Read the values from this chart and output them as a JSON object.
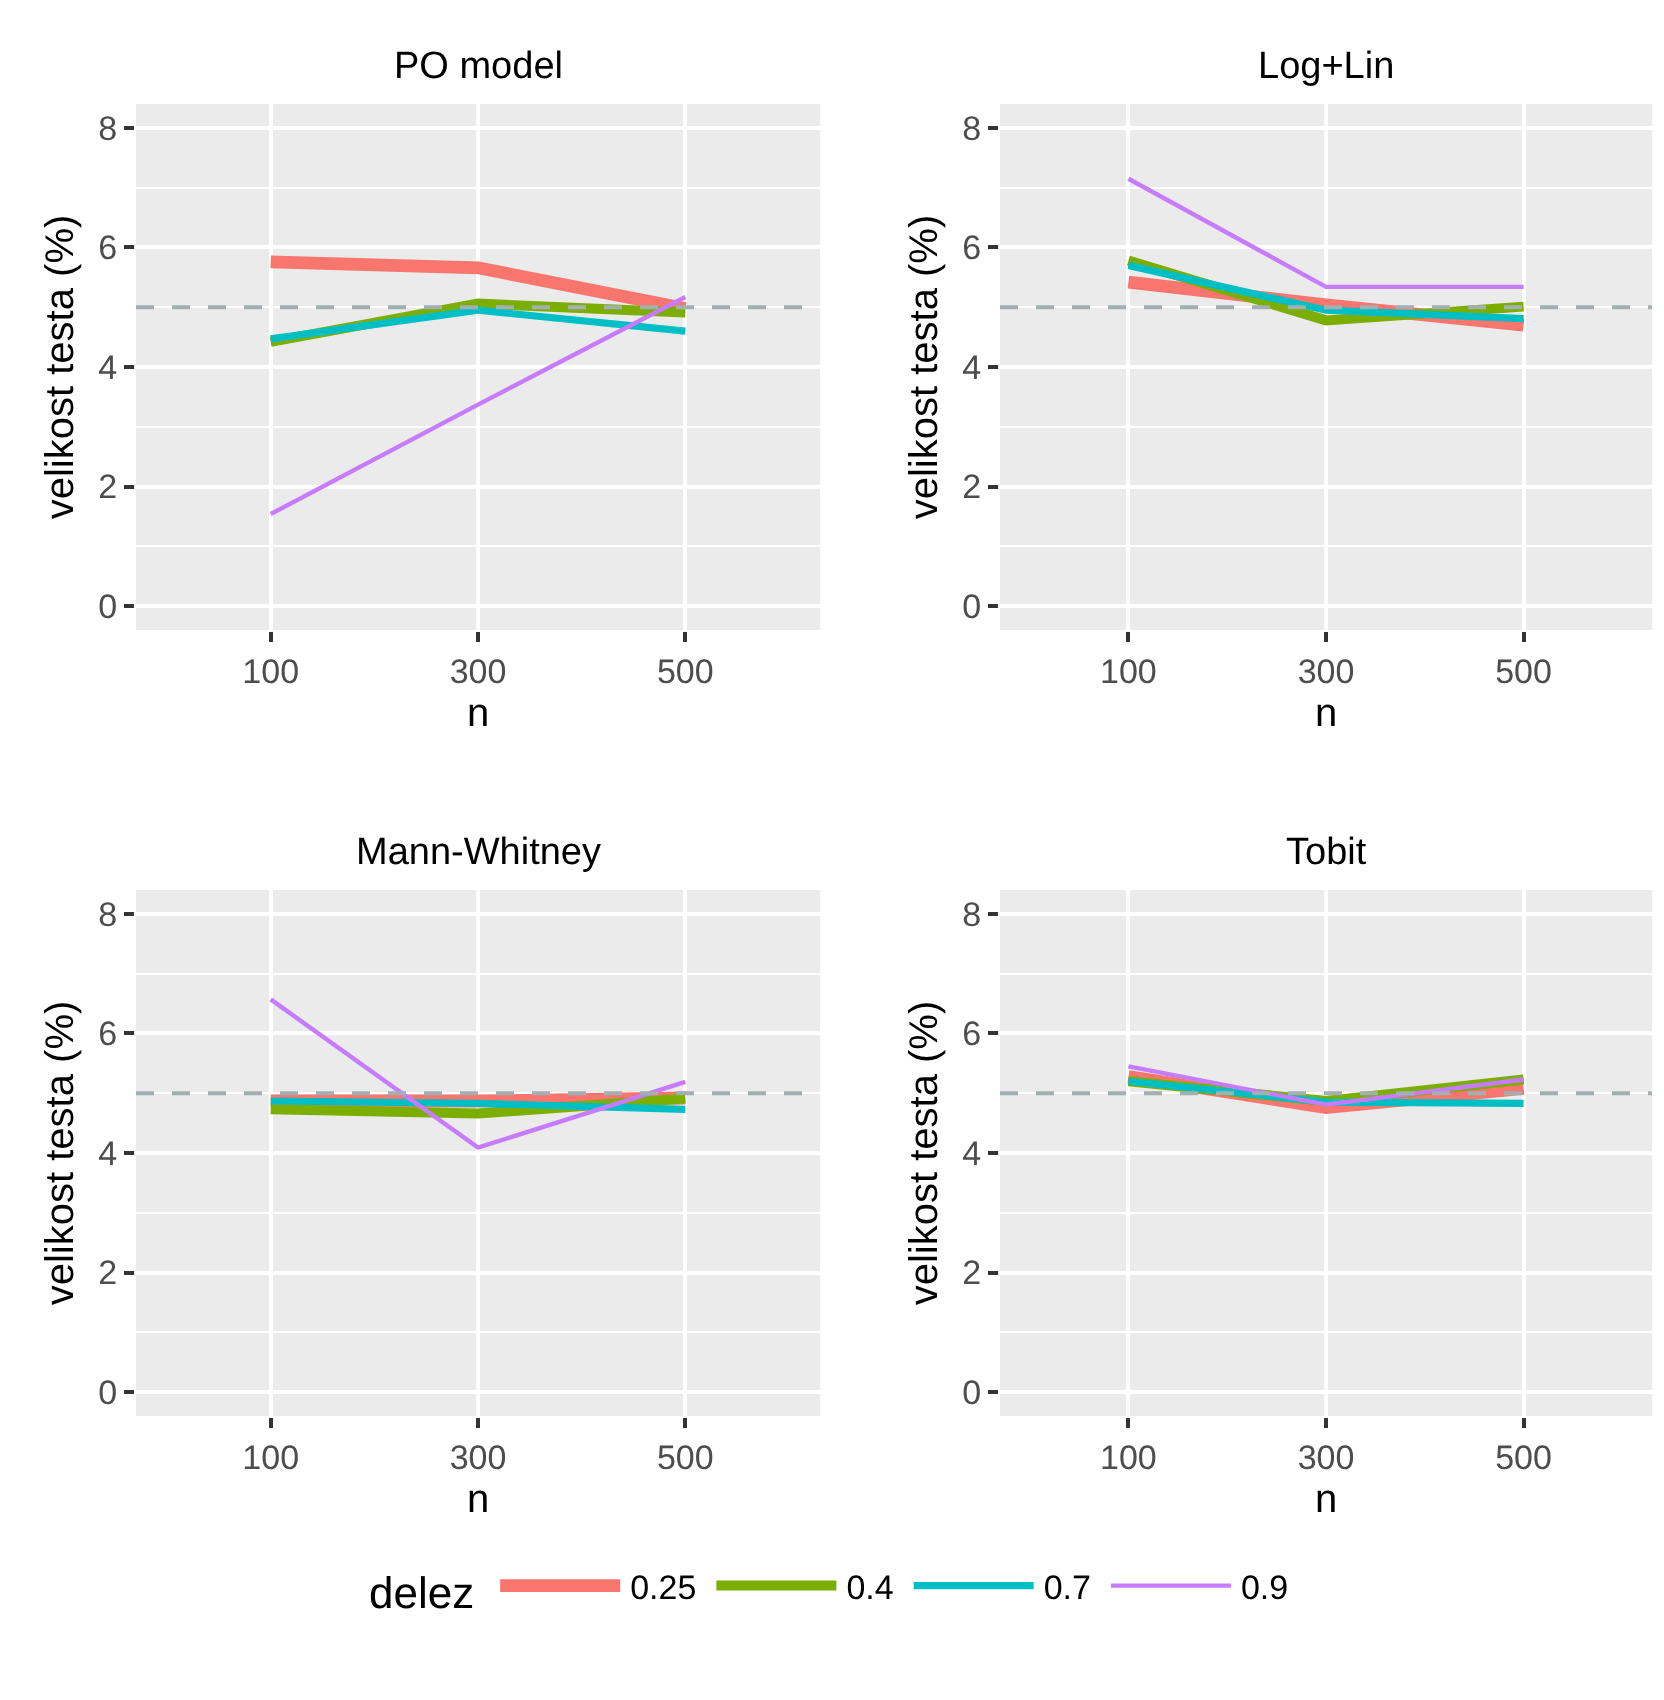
{
  "chart_data": [
    {
      "type": "line",
      "title": "PO model",
      "xlabel": "n",
      "ylabel": "velikost testa (%)",
      "legend_title": "delez",
      "legend": "bottom",
      "grid": true,
      "x": [
        100,
        300,
        500
      ],
      "xlim": [
        -30,
        630
      ],
      "xticks": [
        100,
        300,
        500
      ],
      "ylim": [
        -0.4,
        8.4
      ],
      "yticks": [
        0,
        2,
        4,
        6,
        8
      ],
      "ref_lines": [
        {
          "axis": "y",
          "value": 5,
          "color": "#a3b0b2",
          "line_style": "dashed"
        }
      ],
      "series": [
        {
          "name": "0.25",
          "color": "#f8766d",
          "values": [
            5.76,
            5.66,
            4.98
          ]
        },
        {
          "name": "0.4",
          "color": "#7cae00",
          "values": [
            4.42,
            5.06,
            4.91
          ]
        },
        {
          "name": "0.7",
          "color": "#00bfc4",
          "values": [
            4.47,
            4.95,
            4.6
          ]
        },
        {
          "name": "0.9",
          "color": "#c77cff",
          "values": [
            1.54,
            3.37,
            5.17
          ]
        }
      ]
    },
    {
      "type": "line",
      "title": "Log+Lin",
      "xlabel": "n",
      "ylabel": "velikost testa (%)",
      "grid": true,
      "x": [
        100,
        300,
        500
      ],
      "xlim": [
        -30,
        630
      ],
      "xticks": [
        100,
        300,
        500
      ],
      "ylim": [
        -0.4,
        8.4
      ],
      "yticks": [
        0,
        2,
        4,
        6,
        8
      ],
      "ref_lines": [
        {
          "axis": "y",
          "value": 5,
          "color": "#a3b0b2",
          "line_style": "dashed"
        }
      ],
      "series": [
        {
          "name": "0.25",
          "color": "#f8766d",
          "values": [
            5.42,
            5.04,
            4.7
          ]
        },
        {
          "name": "0.4",
          "color": "#7cae00",
          "values": [
            5.78,
            4.78,
            5.01
          ]
        },
        {
          "name": "0.7",
          "color": "#00bfc4",
          "values": [
            5.7,
            4.95,
            4.81
          ]
        },
        {
          "name": "0.9",
          "color": "#c77cff",
          "values": [
            7.15,
            5.34,
            5.34
          ]
        }
      ]
    },
    {
      "type": "line",
      "title": "Mann-Whitney",
      "xlabel": "n",
      "ylabel": "velikost testa (%)",
      "grid": true,
      "x": [
        100,
        300,
        500
      ],
      "xlim": [
        -30,
        630
      ],
      "xticks": [
        100,
        300,
        500
      ],
      "ylim": [
        -0.4,
        8.4
      ],
      "yticks": [
        0,
        2,
        4,
        6,
        8
      ],
      "ref_lines": [
        {
          "axis": "y",
          "value": 5,
          "color": "#a3b0b2",
          "line_style": "dashed"
        }
      ],
      "series": [
        {
          "name": "0.25",
          "color": "#f8766d",
          "values": [
            4.87,
            4.87,
            4.92
          ]
        },
        {
          "name": "0.4",
          "color": "#7cae00",
          "values": [
            4.73,
            4.66,
            4.91
          ]
        },
        {
          "name": "0.7",
          "color": "#00bfc4",
          "values": [
            4.87,
            4.83,
            4.73
          ]
        },
        {
          "name": "0.9",
          "color": "#c77cff",
          "values": [
            6.57,
            4.09,
            5.19
          ]
        }
      ]
    },
    {
      "type": "line",
      "title": "Tobit",
      "xlabel": "n",
      "ylabel": "velikost testa (%)",
      "grid": true,
      "x": [
        100,
        300,
        500
      ],
      "xlim": [
        -30,
        630
      ],
      "xticks": [
        100,
        300,
        500
      ],
      "ylim": [
        -0.4,
        8.4
      ],
      "yticks": [
        0,
        2,
        4,
        6,
        8
      ],
      "ref_lines": [
        {
          "axis": "y",
          "value": 5,
          "color": "#a3b0b2",
          "line_style": "dashed"
        }
      ],
      "series": [
        {
          "name": "0.25",
          "color": "#f8766d",
          "values": [
            5.28,
            4.76,
            5.08
          ]
        },
        {
          "name": "0.4",
          "color": "#7cae00",
          "values": [
            5.2,
            4.87,
            5.23
          ]
        },
        {
          "name": "0.7",
          "color": "#00bfc4",
          "values": [
            5.2,
            4.85,
            4.83
          ]
        },
        {
          "name": "0.9",
          "color": "#c77cff",
          "values": [
            5.45,
            4.81,
            5.23
          ]
        }
      ]
    }
  ]
}
